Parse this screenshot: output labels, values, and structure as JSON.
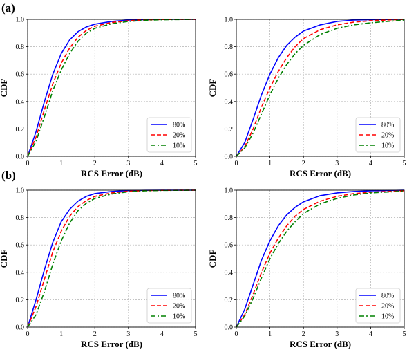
{
  "panel_labels": [
    "(a)",
    "(b)"
  ],
  "chart_data": [
    {
      "type": "line",
      "xlabel": "RCS Error (dB)",
      "ylabel": "CDF",
      "xlim": [
        0,
        5
      ],
      "ylim": [
        0,
        1.0
      ],
      "xticks": [
        "0",
        "1",
        "2",
        "3",
        "4",
        "5"
      ],
      "yticks": [
        "0.0",
        "0.2",
        "0.4",
        "0.6",
        "0.8",
        "1.0"
      ],
      "grid": true,
      "legend": "lower-right",
      "x": [
        0,
        0.25,
        0.5,
        0.75,
        1.0,
        1.25,
        1.5,
        1.75,
        2.0,
        2.5,
        3.0,
        3.5,
        4.0,
        5.0
      ],
      "series": [
        {
          "name": "80%",
          "color": "#0000ff",
          "style": "solid",
          "values": [
            0,
            0.18,
            0.4,
            0.6,
            0.75,
            0.85,
            0.91,
            0.945,
            0.965,
            0.985,
            0.995,
            0.998,
            1.0,
            1.0
          ]
        },
        {
          "name": "20%",
          "color": "#ff0000",
          "style": "dashed",
          "values": [
            0,
            0.14,
            0.34,
            0.53,
            0.68,
            0.79,
            0.87,
            0.92,
            0.95,
            0.977,
            0.99,
            0.996,
            0.999,
            1.0
          ]
        },
        {
          "name": "10%",
          "color": "#008000",
          "style": "dashdot",
          "values": [
            0,
            0.11,
            0.29,
            0.48,
            0.63,
            0.75,
            0.84,
            0.9,
            0.935,
            0.968,
            0.985,
            0.993,
            0.997,
            1.0
          ]
        }
      ]
    },
    {
      "type": "line",
      "xlabel": "RCS Error (dB)",
      "ylabel": "CDF",
      "xlim": [
        0,
        5
      ],
      "ylim": [
        0,
        1.0
      ],
      "xticks": [
        "0",
        "1",
        "2",
        "3",
        "4",
        "5"
      ],
      "yticks": [
        "0.0",
        "0.2",
        "0.4",
        "0.6",
        "0.8",
        "1.0"
      ],
      "grid": true,
      "legend": "lower-right",
      "x": [
        0,
        0.25,
        0.5,
        0.75,
        1.0,
        1.25,
        1.5,
        1.75,
        2.0,
        2.5,
        3.0,
        3.5,
        4.0,
        5.0
      ],
      "series": [
        {
          "name": "80%",
          "color": "#0000ff",
          "style": "solid",
          "values": [
            0,
            0.1,
            0.27,
            0.45,
            0.6,
            0.72,
            0.81,
            0.87,
            0.915,
            0.96,
            0.985,
            0.995,
            0.998,
            1.0
          ]
        },
        {
          "name": "20%",
          "color": "#ff0000",
          "style": "dashed",
          "values": [
            0,
            0.07,
            0.2,
            0.36,
            0.5,
            0.62,
            0.72,
            0.8,
            0.86,
            0.925,
            0.96,
            0.98,
            0.99,
            1.0
          ]
        },
        {
          "name": "10%",
          "color": "#008000",
          "style": "dashdot",
          "values": [
            0,
            0.06,
            0.17,
            0.31,
            0.45,
            0.57,
            0.67,
            0.75,
            0.81,
            0.89,
            0.935,
            0.96,
            0.975,
            0.995
          ]
        }
      ]
    },
    {
      "type": "line",
      "xlabel": "RCS Error (dB)",
      "ylabel": "CDF",
      "xlim": [
        0,
        5
      ],
      "ylim": [
        0,
        1.0
      ],
      "xticks": [
        "0",
        "1",
        "2",
        "3",
        "4",
        "5"
      ],
      "yticks": [
        "0.0",
        "0.2",
        "0.4",
        "0.6",
        "0.8",
        "1.0"
      ],
      "grid": true,
      "legend": "lower-right",
      "x": [
        0,
        0.25,
        0.5,
        0.75,
        1.0,
        1.25,
        1.5,
        1.75,
        2.0,
        2.5,
        3.0,
        3.5,
        4.0,
        5.0
      ],
      "series": [
        {
          "name": "80%",
          "color": "#0000ff",
          "style": "solid",
          "values": [
            0,
            0.2,
            0.42,
            0.62,
            0.77,
            0.86,
            0.92,
            0.955,
            0.975,
            0.99,
            0.997,
            0.999,
            1.0,
            1.0
          ]
        },
        {
          "name": "20%",
          "color": "#ff0000",
          "style": "dashed",
          "values": [
            0,
            0.15,
            0.35,
            0.55,
            0.7,
            0.81,
            0.88,
            0.925,
            0.955,
            0.98,
            0.992,
            0.997,
            0.999,
            1.0
          ]
        },
        {
          "name": "10%",
          "color": "#008000",
          "style": "dashdot",
          "values": [
            0,
            0.09,
            0.26,
            0.46,
            0.63,
            0.76,
            0.85,
            0.905,
            0.94,
            0.972,
            0.988,
            0.995,
            0.998,
            1.0
          ]
        }
      ]
    },
    {
      "type": "line",
      "xlabel": "RCS Error (dB)",
      "ylabel": "CDF",
      "xlim": [
        0,
        5
      ],
      "ylim": [
        0,
        1.0
      ],
      "xticks": [
        "0",
        "1",
        "2",
        "3",
        "4",
        "5"
      ],
      "yticks": [
        "0.0",
        "0.2",
        "0.4",
        "0.6",
        "0.8",
        "1.0"
      ],
      "grid": true,
      "legend": "lower-right",
      "x": [
        0,
        0.25,
        0.5,
        0.75,
        1.0,
        1.25,
        1.5,
        1.75,
        2.0,
        2.5,
        3.0,
        3.5,
        4.0,
        5.0
      ],
      "series": [
        {
          "name": "80%",
          "color": "#0000ff",
          "style": "solid",
          "values": [
            0,
            0.13,
            0.31,
            0.49,
            0.63,
            0.74,
            0.82,
            0.875,
            0.915,
            0.96,
            0.98,
            0.99,
            0.995,
            1.0
          ]
        },
        {
          "name": "20%",
          "color": "#ff0000",
          "style": "dashed",
          "values": [
            0,
            0.09,
            0.24,
            0.4,
            0.54,
            0.65,
            0.74,
            0.81,
            0.86,
            0.92,
            0.955,
            0.975,
            0.985,
            0.995
          ]
        },
        {
          "name": "10%",
          "color": "#008000",
          "style": "dashdot",
          "values": [
            0,
            0.08,
            0.21,
            0.36,
            0.5,
            0.61,
            0.7,
            0.77,
            0.83,
            0.9,
            0.94,
            0.965,
            0.98,
            0.993
          ]
        }
      ]
    }
  ]
}
